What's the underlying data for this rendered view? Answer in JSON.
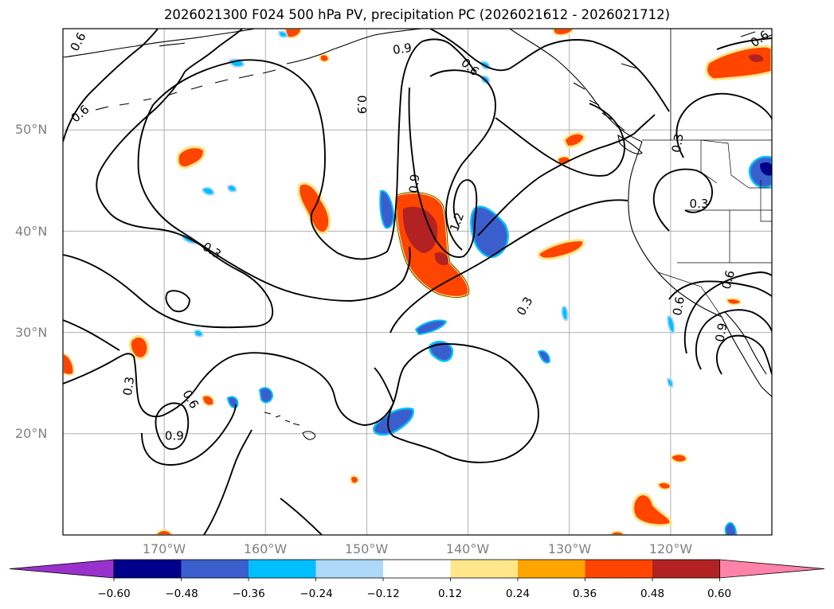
{
  "title": "2026021300 F024 500 hPa PV, precipitation PC (2026021612 - 2026021712)",
  "map": {
    "lon_range": [
      -180,
      -110
    ],
    "lat_range": [
      10,
      60
    ],
    "grid_lons": [
      -170,
      -160,
      -150,
      -140,
      -130,
      -120
    ],
    "grid_lats": [
      20,
      30,
      40,
      50
    ],
    "lon_labels": [
      "170°W",
      "160°W",
      "150°W",
      "140°W",
      "130°W",
      "120°W"
    ],
    "lat_labels": [
      "20°N",
      "30°N",
      "40°N",
      "50°N"
    ],
    "contour_labels": [
      {
        "text": "0.6",
        "lon": -178.5,
        "lat": 58.7,
        "rot": -62
      },
      {
        "text": "0.9",
        "lon": -146.5,
        "lat": 58.0,
        "rot": -8
      },
      {
        "text": "0.6",
        "lon": -139.8,
        "lat": 56.2,
        "rot": 42
      },
      {
        "text": "0.6",
        "lon": -111.2,
        "lat": 59.0,
        "rot": -35
      },
      {
        "text": "0.6",
        "lon": -178.3,
        "lat": 51.6,
        "rot": -40
      },
      {
        "text": "0.9",
        "lon": -150.5,
        "lat": 52.5,
        "rot": 90
      },
      {
        "text": "0.3",
        "lon": -119.3,
        "lat": 48.7,
        "rot": -80
      },
      {
        "text": "0.9",
        "lon": -145.3,
        "lat": 44.7,
        "rot": -85
      },
      {
        "text": "1.2",
        "lon": -141.1,
        "lat": 40.9,
        "rot": -70
      },
      {
        "text": "0.3",
        "lon": -117.2,
        "lat": 42.7,
        "rot": 0
      },
      {
        "text": "0.3",
        "lon": -165.3,
        "lat": 38.1,
        "rot": 32
      },
      {
        "text": "0.6",
        "lon": -114.3,
        "lat": 35.2,
        "rot": -75
      },
      {
        "text": "0.3",
        "lon": -134.4,
        "lat": 32.6,
        "rot": -60
      },
      {
        "text": "0.6",
        "lon": -119.2,
        "lat": 32.6,
        "rot": -80
      },
      {
        "text": "0.9",
        "lon": -115.0,
        "lat": 30.0,
        "rot": -80
      },
      {
        "text": "0.3",
        "lon": -173.5,
        "lat": 24.7,
        "rot": -82
      },
      {
        "text": "0.6",
        "lon": -167.4,
        "lat": 23.4,
        "rot": 60
      },
      {
        "text": "0.9",
        "lon": -169.0,
        "lat": 19.8,
        "rot": 0
      }
    ],
    "precip_colors": {
      "neg_060": "#00008b",
      "neg_048": "#3a5fcd",
      "neg_036": "#00bfff",
      "neg_024": "#add8f8",
      "pos_024": "#ffa500",
      "pos_036": "#ff4500",
      "pos_048": "#b22222",
      "pos_060": "#ff82ab",
      "yellow": "#ffe68a"
    }
  },
  "colorbar": {
    "colors": [
      "#9932cc",
      "#00008b",
      "#3a5fcd",
      "#00bfff",
      "#add8f8",
      "#ffffff",
      "#ffe68a",
      "#ffa500",
      "#ff4500",
      "#b22222",
      "#ff82ab"
    ],
    "ticks": [
      "−0.60",
      "−0.48",
      "−0.36",
      "−0.24",
      "−0.12",
      "0.12",
      "0.24",
      "0.36",
      "0.48",
      "0.60"
    ]
  }
}
